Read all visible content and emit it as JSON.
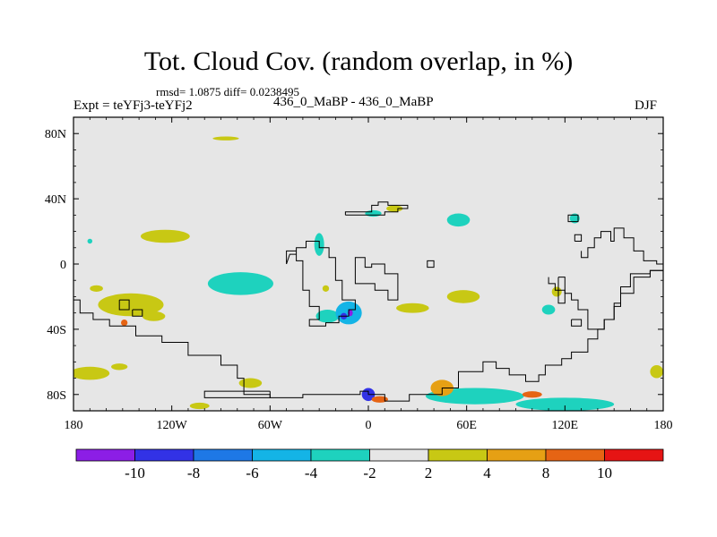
{
  "chart_data": {
    "type": "heatmap",
    "title": "Tot. Cloud Cov. (random overlap, in %)",
    "stats": "rmsd= 1.0875  diff= 0.0238495",
    "experiment": "Expt = teYFj3-teYFj2",
    "subtitle": "436_0_MaBP - 436_0_MaBP",
    "season": "DJF",
    "xlim": [
      -180,
      180
    ],
    "ylim": [
      -90,
      90
    ],
    "x_ticks": [
      {
        "value": -180,
        "label": "180"
      },
      {
        "value": -120,
        "label": "120W"
      },
      {
        "value": -60,
        "label": "60W"
      },
      {
        "value": 0,
        "label": "0"
      },
      {
        "value": 60,
        "label": "60E"
      },
      {
        "value": 120,
        "label": "120E"
      },
      {
        "value": 180,
        "label": "180"
      }
    ],
    "y_ticks": [
      {
        "value": 80,
        "label": "80N"
      },
      {
        "value": 40,
        "label": "40N"
      },
      {
        "value": 0,
        "label": "0"
      },
      {
        "value": -40,
        "label": "40S"
      },
      {
        "value": -80,
        "label": "80S"
      }
    ],
    "background_color": "#e6e6e6",
    "colorbar": {
      "colors": [
        "#8c1ee6",
        "#3232e6",
        "#1e78e6",
        "#14b4e6",
        "#1ed2be",
        "#e6e6e6",
        "#c8c814",
        "#e6a014",
        "#e66414",
        "#e61414"
      ],
      "labels": [
        "-10",
        "-8",
        "-6",
        "-4",
        "-2",
        "2",
        "4",
        "8",
        "10"
      ]
    },
    "anomaly_patches": [
      {
        "lon": -170,
        "lat": -67,
        "rlon": 12,
        "rlat": 4,
        "color": "#c8c814"
      },
      {
        "lon": -152,
        "lat": -63,
        "rlon": 5,
        "rlat": 2,
        "color": "#c8c814"
      },
      {
        "lon": -124,
        "lat": 17,
        "rlon": 15,
        "rlat": 4,
        "color": "#c8c814"
      },
      {
        "lon": -145,
        "lat": -25,
        "rlon": 20,
        "rlat": 7,
        "color": "#c8c814"
      },
      {
        "lon": -131,
        "lat": -32,
        "rlon": 7,
        "rlat": 3,
        "color": "#c8c814"
      },
      {
        "lon": -166,
        "lat": -15,
        "rlon": 4,
        "rlat": 2,
        "color": "#c8c814"
      },
      {
        "lon": -149,
        "lat": -36,
        "rlon": 2,
        "rlat": 2,
        "color": "#e66414"
      },
      {
        "lon": -78,
        "lat": -12,
        "rlon": 20,
        "rlat": 7,
        "color": "#1ed2be"
      },
      {
        "lon": -30,
        "lat": 12,
        "rlon": 3,
        "rlat": 7,
        "color": "#1ed2be"
      },
      {
        "lon": -25,
        "lat": -32,
        "rlon": 7,
        "rlat": 4,
        "color": "#1ed2be"
      },
      {
        "lon": -12,
        "lat": -30,
        "rlon": 8,
        "rlat": 7,
        "color": "#14b4e6"
      },
      {
        "lon": -15,
        "lat": -32,
        "rlon": 2,
        "rlat": 2,
        "color": "#3232e6"
      },
      {
        "lon": -11,
        "lat": -30,
        "rlon": 1.5,
        "rlat": 2,
        "color": "#8c1ee6"
      },
      {
        "lon": -26,
        "lat": -15,
        "rlon": 2,
        "rlat": 2,
        "color": "#c8c814"
      },
      {
        "lon": 27,
        "lat": -27,
        "rlon": 10,
        "rlat": 3,
        "color": "#c8c814"
      },
      {
        "lon": 58,
        "lat": -20,
        "rlon": 10,
        "rlat": 4,
        "color": "#c8c814"
      },
      {
        "lon": 55,
        "lat": 27,
        "rlon": 7,
        "rlat": 4,
        "color": "#1ed2be"
      },
      {
        "lon": 3,
        "lat": 31,
        "rlon": 5,
        "rlat": 2,
        "color": "#1ed2be"
      },
      {
        "lon": 16,
        "lat": 34,
        "rlon": 5,
        "rlat": 2,
        "color": "#c8c814"
      },
      {
        "lon": 65,
        "lat": -81,
        "rlon": 30,
        "rlat": 5,
        "color": "#1ed2be"
      },
      {
        "lon": 120,
        "lat": -86,
        "rlon": 30,
        "rlat": 4,
        "color": "#1ed2be"
      },
      {
        "lon": 45,
        "lat": -76,
        "rlon": 7,
        "rlat": 5,
        "color": "#e6a014"
      },
      {
        "lon": 0,
        "lat": -80,
        "rlon": 4,
        "rlat": 4,
        "color": "#3232e6"
      },
      {
        "lon": 7,
        "lat": -83,
        "rlon": 5,
        "rlat": 2,
        "color": "#e66414"
      },
      {
        "lon": -103,
        "lat": -87,
        "rlon": 6,
        "rlat": 2,
        "color": "#c8c814"
      },
      {
        "lon": -72,
        "lat": -73,
        "rlon": 7,
        "rlat": 3,
        "color": "#c8c814"
      },
      {
        "lon": 115,
        "lat": -17,
        "rlon": 3,
        "rlat": 3,
        "color": "#c8c814"
      },
      {
        "lon": 110,
        "lat": -28,
        "rlon": 4,
        "rlat": 3,
        "color": "#1ed2be"
      },
      {
        "lon": 176,
        "lat": -66,
        "rlon": 4,
        "rlat": 4,
        "color": "#c8c814"
      },
      {
        "lon": 126,
        "lat": 28,
        "rlon": 3,
        "rlat": 3,
        "color": "#1ed2be"
      },
      {
        "lon": -87,
        "lat": 77,
        "rlon": 8,
        "rlat": 1.2,
        "color": "#c8c814"
      },
      {
        "lon": -170,
        "lat": 14,
        "rlon": 1.5,
        "rlat": 1.5,
        "color": "#1ed2be"
      },
      {
        "lon": 100,
        "lat": -80,
        "rlon": 6,
        "rlat": 2,
        "color": "#e66414"
      }
    ],
    "coastlines": [
      [
        [
          -180,
          -22
        ],
        [
          -176,
          -22
        ],
        [
          -176,
          -30
        ],
        [
          -168,
          -30
        ],
        [
          -168,
          -34
        ],
        [
          -158,
          -34
        ],
        [
          -158,
          -38
        ],
        [
          -142,
          -38
        ],
        [
          -142,
          -44
        ],
        [
          -126,
          -44
        ],
        [
          -126,
          -48
        ],
        [
          -110,
          -48
        ],
        [
          -110,
          -56
        ],
        [
          -90,
          -56
        ],
        [
          -90,
          -62
        ],
        [
          -80,
          -62
        ],
        [
          -80,
          -70
        ],
        [
          -76,
          -70
        ],
        [
          -76,
          -80
        ],
        [
          -60,
          -80
        ],
        [
          -60,
          -82
        ],
        [
          -40,
          -82
        ],
        [
          -40,
          -80
        ],
        [
          -5,
          -80
        ],
        [
          -5,
          -78
        ],
        [
          0,
          -78
        ],
        [
          0,
          -80
        ],
        [
          10,
          -80
        ],
        [
          10,
          -84
        ],
        [
          25,
          -84
        ],
        [
          25,
          -80
        ],
        [
          45,
          -80
        ],
        [
          45,
          -76
        ],
        [
          55,
          -76
        ],
        [
          55,
          -66
        ],
        [
          70,
          -66
        ],
        [
          70,
          -60
        ],
        [
          78,
          -60
        ],
        [
          78,
          -64
        ],
        [
          86,
          -64
        ],
        [
          86,
          -68
        ],
        [
          96,
          -68
        ],
        [
          96,
          -72
        ],
        [
          104,
          -72
        ],
        [
          104,
          -68
        ],
        [
          108,
          -68
        ],
        [
          108,
          -62
        ],
        [
          118,
          -62
        ],
        [
          118,
          -58
        ],
        [
          124,
          -58
        ],
        [
          124,
          -54
        ],
        [
          134,
          -54
        ],
        [
          134,
          -46
        ],
        [
          140,
          -46
        ],
        [
          140,
          -40
        ],
        [
          144,
          -40
        ],
        [
          144,
          -34
        ],
        [
          150,
          -34
        ],
        [
          150,
          -26
        ],
        [
          154,
          -26
        ],
        [
          154,
          -18
        ],
        [
          162,
          -18
        ],
        [
          162,
          -8
        ],
        [
          172,
          -8
        ],
        [
          172,
          -4
        ],
        [
          180,
          -4
        ]
      ],
      [
        [
          -152,
          -22
        ],
        [
          -152,
          -28
        ],
        [
          -146,
          -28
        ],
        [
          -146,
          -22
        ],
        [
          -152,
          -22
        ]
      ],
      [
        [
          -144,
          -28
        ],
        [
          -144,
          -32
        ],
        [
          -138,
          -32
        ],
        [
          -138,
          -28
        ],
        [
          -144,
          -28
        ]
      ],
      [
        [
          -50,
          0
        ],
        [
          -50,
          8
        ],
        [
          -44,
          8
        ],
        [
          -44,
          2
        ],
        [
          -40,
          2
        ],
        [
          -40,
          -16
        ],
        [
          -36,
          -16
        ],
        [
          -36,
          -26
        ],
        [
          -30,
          -26
        ],
        [
          -30,
          -34
        ],
        [
          -36,
          -34
        ],
        [
          -36,
          -38
        ],
        [
          -26,
          -38
        ],
        [
          -26,
          -36
        ],
        [
          -18,
          -36
        ],
        [
          -18,
          -32
        ],
        [
          -12,
          -32
        ],
        [
          -12,
          -28
        ],
        [
          -8,
          -28
        ],
        [
          -8,
          -22
        ],
        [
          -16,
          -22
        ],
        [
          -16,
          -10
        ],
        [
          -20,
          -10
        ],
        [
          -20,
          4
        ],
        [
          -24,
          4
        ],
        [
          -24,
          10
        ],
        [
          -30,
          10
        ],
        [
          -30,
          14
        ],
        [
          -38,
          14
        ],
        [
          -38,
          10
        ],
        [
          -44,
          10
        ],
        [
          -44,
          6
        ],
        [
          -48,
          6
        ],
        [
          -50,
          0
        ]
      ],
      [
        [
          -8,
          -6
        ],
        [
          -8,
          -12
        ],
        [
          4,
          -12
        ],
        [
          4,
          -16
        ],
        [
          12,
          -16
        ],
        [
          12,
          -22
        ],
        [
          18,
          -22
        ],
        [
          18,
          -6
        ],
        [
          10,
          -6
        ],
        [
          10,
          0
        ],
        [
          2,
          0
        ],
        [
          2,
          -2
        ],
        [
          -2,
          -2
        ],
        [
          -2,
          4
        ],
        [
          -8,
          4
        ],
        [
          -8,
          -6
        ]
      ],
      [
        [
          -14,
          30
        ],
        [
          -14,
          32
        ],
        [
          2,
          32
        ],
        [
          2,
          36
        ],
        [
          6,
          36
        ],
        [
          6,
          38
        ],
        [
          12,
          38
        ],
        [
          12,
          36
        ],
        [
          24,
          36
        ],
        [
          24,
          34
        ],
        [
          18,
          34
        ],
        [
          18,
          32
        ],
        [
          10,
          32
        ],
        [
          10,
          30
        ],
        [
          -14,
          30
        ]
      ],
      [
        [
          36,
          0
        ],
        [
          36,
          2
        ],
        [
          40,
          2
        ],
        [
          40,
          -2
        ],
        [
          36,
          -2
        ],
        [
          36,
          0
        ]
      ],
      [
        [
          110,
          -8
        ],
        [
          110,
          -12
        ],
        [
          114,
          -12
        ],
        [
          114,
          -16
        ],
        [
          120,
          -16
        ],
        [
          120,
          -18
        ],
        [
          124,
          -18
        ],
        [
          124,
          -22
        ],
        [
          128,
          -22
        ],
        [
          128,
          -28
        ],
        [
          134,
          -28
        ],
        [
          134,
          -40
        ],
        [
          144,
          -40
        ],
        [
          144,
          -34
        ],
        [
          150,
          -34
        ],
        [
          150,
          -24
        ],
        [
          154,
          -24
        ],
        [
          154,
          -14
        ],
        [
          160,
          -14
        ],
        [
          160,
          -6
        ],
        [
          172,
          -6
        ],
        [
          172,
          -4
        ],
        [
          180,
          -4
        ]
      ],
      [
        [
          130,
          8
        ],
        [
          130,
          4
        ],
        [
          134,
          4
        ],
        [
          134,
          10
        ],
        [
          138,
          10
        ],
        [
          138,
          16
        ],
        [
          142,
          16
        ],
        [
          142,
          20
        ],
        [
          148,
          20
        ],
        [
          148,
          14
        ],
        [
          150,
          14
        ],
        [
          150,
          22
        ],
        [
          156,
          22
        ],
        [
          156,
          16
        ],
        [
          162,
          16
        ],
        [
          162,
          8
        ],
        [
          168,
          8
        ],
        [
          168,
          2
        ],
        [
          176,
          2
        ],
        [
          176,
          0
        ],
        [
          180,
          0
        ]
      ],
      [
        [
          124,
          -34
        ],
        [
          124,
          -38
        ],
        [
          130,
          -38
        ],
        [
          130,
          -34
        ],
        [
          124,
          -34
        ]
      ],
      [
        [
          126,
          14
        ],
        [
          126,
          18
        ],
        [
          130,
          18
        ],
        [
          130,
          14
        ],
        [
          126,
          14
        ]
      ],
      [
        [
          122,
          28
        ],
        [
          122,
          30
        ],
        [
          128,
          30
        ],
        [
          128,
          26
        ],
        [
          122,
          26
        ],
        [
          122,
          28
        ]
      ],
      [
        [
          116,
          -8
        ],
        [
          116,
          -24
        ],
        [
          120,
          -24
        ],
        [
          120,
          -8
        ],
        [
          116,
          -8
        ]
      ],
      [
        [
          -60,
          -78
        ],
        [
          -60,
          -82
        ],
        [
          -100,
          -82
        ],
        [
          -100,
          -78
        ],
        [
          -60,
          -78
        ]
      ]
    ]
  }
}
